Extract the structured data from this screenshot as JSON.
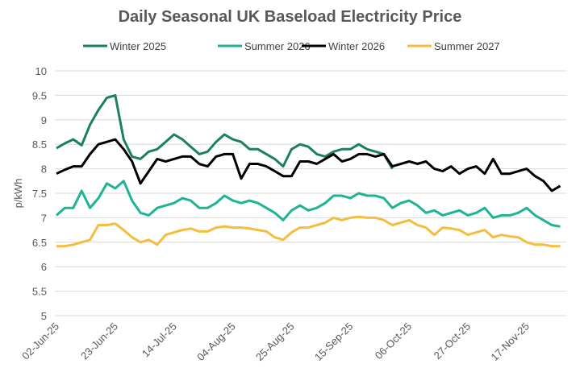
{
  "chart_data": {
    "type": "line",
    "title": "Daily Seasonal UK Baseload Electricity Price",
    "xlabel": "",
    "ylabel": "p/kWh",
    "ylim": [
      5,
      10
    ],
    "yticks": [
      "5",
      "5.5",
      "6",
      "6.5",
      "7",
      "7.5",
      "8",
      "8.5",
      "9",
      "9.5",
      "10"
    ],
    "xlim": [
      "2025-06-02",
      "2025-11-30"
    ],
    "xtick_dates": [
      "2025-06-02",
      "2025-06-23",
      "2025-07-14",
      "2025-08-04",
      "2025-08-25",
      "2025-09-15",
      "2025-10-06",
      "2025-10-27",
      "2025-11-17"
    ],
    "xtick_labels": [
      "02-Jun-25",
      "23-Jun-25",
      "14-Jul-25",
      "04-Aug-25",
      "25-Aug-25",
      "15-Sep-25",
      "06-Oct-25",
      "27-Oct-25",
      "17-Nov-25"
    ],
    "grid": "horizontal",
    "legend": "top",
    "x": [
      "2025-06-02",
      "2025-06-05",
      "2025-06-08",
      "2025-06-11",
      "2025-06-14",
      "2025-06-17",
      "2025-06-20",
      "2025-06-23",
      "2025-06-26",
      "2025-06-29",
      "2025-07-02",
      "2025-07-05",
      "2025-07-08",
      "2025-07-11",
      "2025-07-14",
      "2025-07-17",
      "2025-07-20",
      "2025-07-23",
      "2025-07-26",
      "2025-07-29",
      "2025-08-01",
      "2025-08-04",
      "2025-08-07",
      "2025-08-10",
      "2025-08-13",
      "2025-08-16",
      "2025-08-19",
      "2025-08-22",
      "2025-08-25",
      "2025-08-28",
      "2025-08-31",
      "2025-09-03",
      "2025-09-06",
      "2025-09-09",
      "2025-09-12",
      "2025-09-15",
      "2025-09-18",
      "2025-09-21",
      "2025-09-24",
      "2025-09-27",
      "2025-09-30",
      "2025-10-03",
      "2025-10-06",
      "2025-10-09",
      "2025-10-12",
      "2025-10-15",
      "2025-10-18",
      "2025-10-21",
      "2025-10-24",
      "2025-10-27",
      "2025-10-30",
      "2025-11-02",
      "2025-11-05",
      "2025-11-08",
      "2025-11-11",
      "2025-11-14",
      "2025-11-17",
      "2025-11-20",
      "2025-11-23",
      "2025-11-26",
      "2025-11-29"
    ],
    "series": [
      {
        "name": "Winter 2025",
        "color": "#1b7f64",
        "values": [
          8.42,
          8.52,
          8.6,
          8.48,
          8.9,
          9.2,
          9.45,
          9.5,
          8.6,
          8.25,
          8.2,
          8.35,
          8.4,
          8.55,
          8.7,
          8.6,
          8.45,
          8.3,
          8.35,
          8.55,
          8.7,
          8.6,
          8.55,
          8.4,
          8.4,
          8.3,
          8.2,
          8.05,
          8.4,
          8.5,
          8.45,
          8.3,
          8.25,
          8.35,
          8.4,
          8.4,
          8.5,
          8.4,
          8.35,
          8.3,
          8.0,
          null,
          null,
          null,
          null,
          null,
          null,
          null,
          null,
          null,
          null,
          null,
          null,
          null,
          null,
          null,
          null,
          null,
          null,
          null,
          null
        ]
      },
      {
        "name": "Summer 2026",
        "color": "#1db394",
        "values": [
          7.05,
          7.2,
          7.2,
          7.55,
          7.2,
          7.4,
          7.7,
          7.6,
          7.75,
          7.35,
          7.1,
          7.05,
          7.2,
          7.25,
          7.3,
          7.4,
          7.35,
          7.2,
          7.2,
          7.3,
          7.45,
          7.35,
          7.3,
          7.35,
          7.3,
          7.2,
          7.1,
          6.95,
          7.15,
          7.25,
          7.15,
          7.2,
          7.3,
          7.45,
          7.45,
          7.4,
          7.5,
          7.45,
          7.45,
          7.4,
          7.2,
          7.3,
          7.35,
          7.25,
          7.1,
          7.15,
          7.05,
          7.1,
          7.15,
          7.05,
          7.1,
          7.2,
          7.0,
          7.05,
          7.05,
          7.1,
          7.2,
          7.05,
          6.95,
          6.85,
          6.82
        ]
      },
      {
        "name": "Winter 2026",
        "color": "#000000",
        "values": [
          7.9,
          7.98,
          8.05,
          8.05,
          8.3,
          8.5,
          8.55,
          8.6,
          8.4,
          8.15,
          7.7,
          7.95,
          8.2,
          8.15,
          8.2,
          8.25,
          8.25,
          8.1,
          8.05,
          8.25,
          8.3,
          8.3,
          7.8,
          8.1,
          8.1,
          8.05,
          7.95,
          7.85,
          7.85,
          8.15,
          8.15,
          8.1,
          8.2,
          8.3,
          8.15,
          8.2,
          8.3,
          8.3,
          8.25,
          8.3,
          8.05,
          8.1,
          8.15,
          8.1,
          8.15,
          8.0,
          7.95,
          8.05,
          7.9,
          8.0,
          8.05,
          7.9,
          8.2,
          7.9,
          7.9,
          7.95,
          8.0,
          7.85,
          7.75,
          7.55,
          7.65
        ]
      },
      {
        "name": "Summer 2027",
        "color": "#f5bd3d",
        "values": [
          6.42,
          6.42,
          6.45,
          6.5,
          6.55,
          6.85,
          6.85,
          6.88,
          6.75,
          6.6,
          6.5,
          6.55,
          6.45,
          6.65,
          6.7,
          6.75,
          6.78,
          6.72,
          6.72,
          6.8,
          6.82,
          6.8,
          6.8,
          6.78,
          6.75,
          6.72,
          6.6,
          6.55,
          6.7,
          6.8,
          6.8,
          6.85,
          6.9,
          7.0,
          6.95,
          7.0,
          7.02,
          7.0,
          7.0,
          6.95,
          6.85,
          6.9,
          6.95,
          6.85,
          6.8,
          6.65,
          6.8,
          6.78,
          6.75,
          6.65,
          6.7,
          6.75,
          6.6,
          6.65,
          6.62,
          6.6,
          6.5,
          6.45,
          6.45,
          6.42,
          6.42
        ]
      }
    ]
  }
}
